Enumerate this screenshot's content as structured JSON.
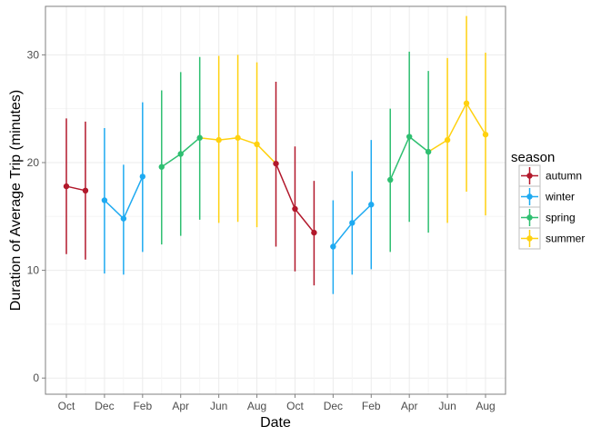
{
  "chart_data": {
    "type": "line",
    "xlabel": "Date",
    "ylabel": "Duration of Average Trip (minutes)",
    "ylim": [
      -1.5,
      34.5
    ],
    "y_ticks": [
      0,
      10,
      20,
      30
    ],
    "x_tick_labels": [
      "Oct",
      "Dec",
      "Feb",
      "Apr",
      "Jun",
      "Aug",
      "Oct",
      "Dec",
      "Feb",
      "Apr",
      "Jun",
      "Aug"
    ],
    "grid": true,
    "legend": {
      "title": "season",
      "placement": "right"
    },
    "colors": {
      "autumn": "#b2182b",
      "winter": "#1eaaf1",
      "spring": "#2fbf71",
      "summer": "#ffd10f"
    },
    "x": [
      "2013-10",
      "2013-11",
      "2013-12",
      "2014-01",
      "2014-02",
      "2014-03",
      "2014-04",
      "2014-05",
      "2014-06",
      "2014-07",
      "2014-08",
      "2014-09",
      "2014-10",
      "2014-11",
      "2014-12",
      "2015-01",
      "2015-02",
      "2015-03",
      "2015-04",
      "2015-05",
      "2015-06",
      "2015-07",
      "2015-08"
    ],
    "series": [
      {
        "name": "autumn",
        "points": [
          {
            "x": "2013-10",
            "y": 17.8,
            "low": 11.5,
            "high": 24.1
          },
          {
            "x": "2013-11",
            "y": 17.4,
            "low": 11.0,
            "high": 23.8
          },
          {
            "x": "2014-09",
            "y": 19.9,
            "low": 12.2,
            "high": 27.5
          },
          {
            "x": "2014-10",
            "y": 15.7,
            "low": 9.9,
            "high": 21.5
          },
          {
            "x": "2014-11",
            "y": 13.5,
            "low": 8.6,
            "high": 18.3
          }
        ]
      },
      {
        "name": "winter",
        "points": [
          {
            "x": "2013-12",
            "y": 16.5,
            "low": 9.7,
            "high": 23.2
          },
          {
            "x": "2014-01",
            "y": 14.8,
            "low": 9.6,
            "high": 19.8
          },
          {
            "x": "2014-02",
            "y": 18.7,
            "low": 11.7,
            "high": 25.6
          },
          {
            "x": "2014-12",
            "y": 12.2,
            "low": 7.8,
            "high": 16.5
          },
          {
            "x": "2015-01",
            "y": 14.4,
            "low": 9.6,
            "high": 19.2
          },
          {
            "x": "2015-02",
            "y": 16.1,
            "low": 10.1,
            "high": 22.1
          }
        ]
      },
      {
        "name": "spring",
        "points": [
          {
            "x": "2014-03",
            "y": 19.6,
            "low": 12.4,
            "high": 26.7
          },
          {
            "x": "2014-04",
            "y": 20.8,
            "low": 13.2,
            "high": 28.4
          },
          {
            "x": "2014-05",
            "y": 22.3,
            "low": 14.7,
            "high": 29.8
          },
          {
            "x": "2015-03",
            "y": 18.4,
            "low": 11.7,
            "high": 25.0
          },
          {
            "x": "2015-04",
            "y": 22.4,
            "low": 14.5,
            "high": 30.3
          },
          {
            "x": "2015-05",
            "y": 21.0,
            "low": 13.5,
            "high": 28.5
          }
        ]
      },
      {
        "name": "summer",
        "points": [
          {
            "x": "2014-06",
            "y": 22.1,
            "low": 14.4,
            "high": 29.9
          },
          {
            "x": "2014-07",
            "y": 22.3,
            "low": 14.5,
            "high": 30.0
          },
          {
            "x": "2014-08",
            "y": 21.7,
            "low": 14.0,
            "high": 29.3
          },
          {
            "x": "2015-06",
            "y": 22.1,
            "low": 14.4,
            "high": 29.7
          },
          {
            "x": "2015-07",
            "y": 25.5,
            "low": 17.3,
            "high": 33.6
          },
          {
            "x": "2015-08",
            "y": 22.6,
            "low": 15.1,
            "high": 30.2
          }
        ]
      }
    ],
    "segments": [
      {
        "series": "autumn",
        "from": "2013-10",
        "to": "2013-11"
      },
      {
        "series": "winter",
        "from": "2013-12",
        "to": "2014-01"
      },
      {
        "series": "winter",
        "from": "2014-01",
        "to": "2014-02"
      },
      {
        "series": "spring",
        "from": "2014-03",
        "to": "2014-04"
      },
      {
        "series": "spring",
        "from": "2014-04",
        "to": "2014-05"
      },
      {
        "series": "summer",
        "from": "2014-05",
        "to": "2014-06"
      },
      {
        "series": "summer",
        "from": "2014-06",
        "to": "2014-07"
      },
      {
        "series": "summer",
        "from": "2014-07",
        "to": "2014-08"
      },
      {
        "series": "summer",
        "from": "2014-08",
        "to": "2014-09"
      },
      {
        "series": "autumn",
        "from": "2014-09",
        "to": "2014-10"
      },
      {
        "series": "autumn",
        "from": "2014-10",
        "to": "2014-11"
      },
      {
        "series": "winter",
        "from": "2014-12",
        "to": "2015-01"
      },
      {
        "series": "winter",
        "from": "2015-01",
        "to": "2015-02"
      },
      {
        "series": "spring",
        "from": "2015-03",
        "to": "2015-04"
      },
      {
        "series": "spring",
        "from": "2015-04",
        "to": "2015-05"
      },
      {
        "series": "summer",
        "from": "2015-05",
        "to": "2015-06"
      },
      {
        "series": "summer",
        "from": "2015-06",
        "to": "2015-07"
      },
      {
        "series": "summer",
        "from": "2015-07",
        "to": "2015-08"
      }
    ]
  }
}
